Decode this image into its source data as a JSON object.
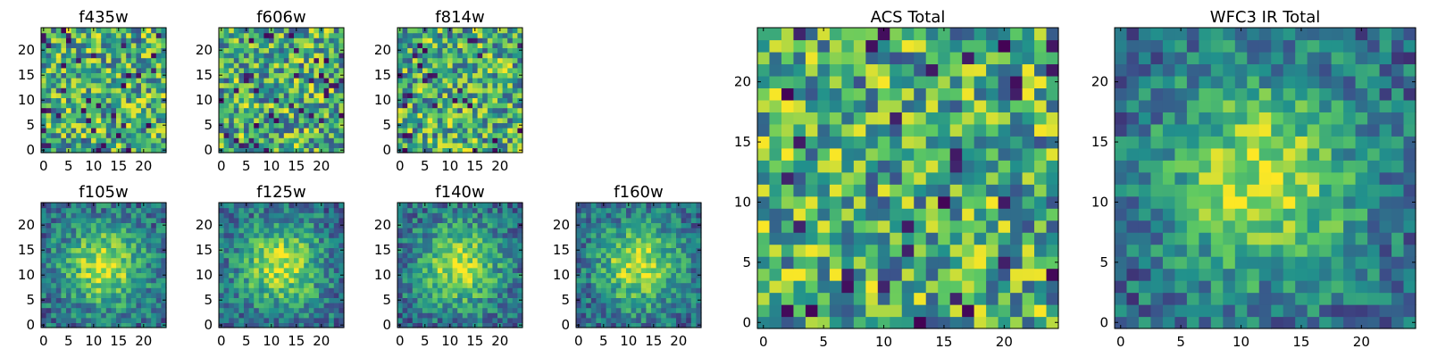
{
  "colormap": [
    "#440154",
    "#3b528b",
    "#21918c",
    "#5ec962",
    "#fde725"
  ],
  "chart_data": [
    {
      "type": "heatmap",
      "title": "f435w",
      "grid": false,
      "xlim": [
        0,
        25
      ],
      "ylim": [
        0,
        25
      ],
      "xticks": [
        "0",
        "5",
        "10",
        "15",
        "20"
      ],
      "yticks": [
        "0",
        "5",
        "10",
        "15",
        "20"
      ],
      "pattern": "noise",
      "seed": 11,
      "vmin": 0,
      "vmax": 1
    },
    {
      "type": "heatmap",
      "title": "f606w",
      "grid": false,
      "xlim": [
        0,
        25
      ],
      "ylim": [
        0,
        25
      ],
      "xticks": [
        "0",
        "5",
        "10",
        "15",
        "20"
      ],
      "yticks": [
        "0",
        "5",
        "10",
        "15",
        "20"
      ],
      "pattern": "noise",
      "seed": 23,
      "vmin": 0,
      "vmax": 1
    },
    {
      "type": "heatmap",
      "title": "f814w",
      "grid": false,
      "xlim": [
        0,
        25
      ],
      "ylim": [
        0,
        25
      ],
      "xticks": [
        "0",
        "5",
        "10",
        "15",
        "20"
      ],
      "yticks": [
        "0",
        "5",
        "10",
        "15",
        "20"
      ],
      "pattern": "noise",
      "seed": 37,
      "vmin": 0,
      "vmax": 1
    },
    {
      "type": "heatmap",
      "title": "f105w",
      "grid": false,
      "xlim": [
        0,
        25
      ],
      "ylim": [
        0,
        25
      ],
      "xticks": [
        "0",
        "5",
        "10",
        "15",
        "20"
      ],
      "yticks": [
        "0",
        "5",
        "10",
        "15",
        "20"
      ],
      "pattern": "blob",
      "seed": 41,
      "vmin": 0,
      "vmax": 1
    },
    {
      "type": "heatmap",
      "title": "f125w",
      "grid": false,
      "xlim": [
        0,
        25
      ],
      "ylim": [
        0,
        25
      ],
      "xticks": [
        "0",
        "5",
        "10",
        "15",
        "20"
      ],
      "yticks": [
        "0",
        "5",
        "10",
        "15",
        "20"
      ],
      "pattern": "blob",
      "seed": 53,
      "vmin": 0,
      "vmax": 1
    },
    {
      "type": "heatmap",
      "title": "f140w",
      "grid": false,
      "xlim": [
        0,
        25
      ],
      "ylim": [
        0,
        25
      ],
      "xticks": [
        "0",
        "5",
        "10",
        "15",
        "20"
      ],
      "yticks": [
        "0",
        "5",
        "10",
        "15",
        "20"
      ],
      "pattern": "blob",
      "seed": 67,
      "vmin": 0,
      "vmax": 1
    },
    {
      "type": "heatmap",
      "title": "f160w",
      "grid": false,
      "xlim": [
        0,
        25
      ],
      "ylim": [
        0,
        25
      ],
      "xticks": [
        "0",
        "5",
        "10",
        "15",
        "20"
      ],
      "yticks": [
        "0",
        "5",
        "10",
        "15",
        "20"
      ],
      "pattern": "blob",
      "seed": 79,
      "vmin": 0,
      "vmax": 1
    },
    {
      "type": "heatmap",
      "title": "ACS Total",
      "grid": false,
      "xlim": [
        0,
        25
      ],
      "ylim": [
        0,
        25
      ],
      "xticks": [
        "0",
        "5",
        "10",
        "15",
        "20"
      ],
      "yticks": [
        "0",
        "5",
        "10",
        "15",
        "20"
      ],
      "pattern": "noise",
      "seed": 97,
      "vmin": 0,
      "vmax": 1
    },
    {
      "type": "heatmap",
      "title": "WFC3 IR Total",
      "grid": false,
      "xlim": [
        0,
        25
      ],
      "ylim": [
        0,
        25
      ],
      "xticks": [
        "0",
        "5",
        "10",
        "15",
        "20"
      ],
      "yticks": [
        "0",
        "5",
        "10",
        "15",
        "20"
      ],
      "pattern": "blob",
      "seed": 101,
      "vmin": 0,
      "vmax": 1
    }
  ]
}
